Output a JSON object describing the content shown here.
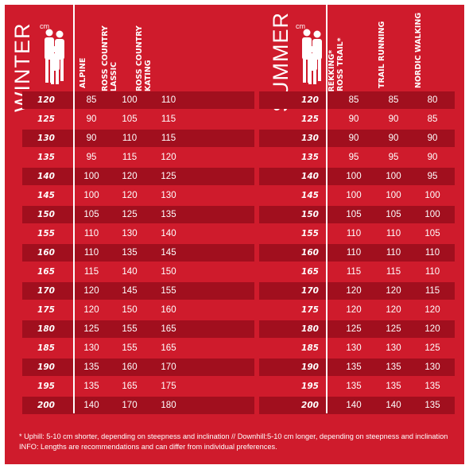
{
  "colors": {
    "background": "#cf1b2c",
    "row_dark": "#a10f1e",
    "text": "#ffffff"
  },
  "winter": {
    "title": "WINTER",
    "unit": "cm",
    "columns": [
      "ALPINE",
      "CROSS COUNTRY\nCLASSIC",
      "CROSS COUNTRY\nSKATING"
    ],
    "rows": [
      {
        "height": "120",
        "values": [
          "85",
          "100",
          "110"
        ]
      },
      {
        "height": "125",
        "values": [
          "90",
          "105",
          "115"
        ]
      },
      {
        "height": "130",
        "values": [
          "90",
          "110",
          "115"
        ]
      },
      {
        "height": "135",
        "values": [
          "95",
          "115",
          "120"
        ]
      },
      {
        "height": "140",
        "values": [
          "100",
          "120",
          "125"
        ]
      },
      {
        "height": "145",
        "values": [
          "100",
          "120",
          "130"
        ]
      },
      {
        "height": "150",
        "values": [
          "105",
          "125",
          "135"
        ]
      },
      {
        "height": "155",
        "values": [
          "110",
          "130",
          "140"
        ]
      },
      {
        "height": "160",
        "values": [
          "110",
          "135",
          "145"
        ]
      },
      {
        "height": "165",
        "values": [
          "115",
          "140",
          "150"
        ]
      },
      {
        "height": "170",
        "values": [
          "120",
          "145",
          "155"
        ]
      },
      {
        "height": "175",
        "values": [
          "120",
          "150",
          "160"
        ]
      },
      {
        "height": "180",
        "values": [
          "125",
          "155",
          "165"
        ]
      },
      {
        "height": "185",
        "values": [
          "130",
          "155",
          "165"
        ]
      },
      {
        "height": "190",
        "values": [
          "135",
          "160",
          "170"
        ]
      },
      {
        "height": "195",
        "values": [
          "135",
          "165",
          "175"
        ]
      },
      {
        "height": "200",
        "values": [
          "140",
          "170",
          "180"
        ]
      }
    ]
  },
  "summer": {
    "title": "SUMMER",
    "unit": "cm",
    "columns": [
      "TREKKING*\nCROSS TRAIL*",
      "TRAIL RUNNING",
      "NORDIC WALKING"
    ],
    "rows": [
      {
        "height": "120",
        "values": [
          "85",
          "85",
          "80"
        ]
      },
      {
        "height": "125",
        "values": [
          "90",
          "90",
          "85"
        ]
      },
      {
        "height": "130",
        "values": [
          "90",
          "90",
          "90"
        ]
      },
      {
        "height": "135",
        "values": [
          "95",
          "95",
          "90"
        ]
      },
      {
        "height": "140",
        "values": [
          "100",
          "100",
          "95"
        ]
      },
      {
        "height": "145",
        "values": [
          "100",
          "100",
          "100"
        ]
      },
      {
        "height": "150",
        "values": [
          "105",
          "105",
          "100"
        ]
      },
      {
        "height": "155",
        "values": [
          "110",
          "110",
          "105"
        ]
      },
      {
        "height": "160",
        "values": [
          "110",
          "110",
          "110"
        ]
      },
      {
        "height": "165",
        "values": [
          "115",
          "115",
          "110"
        ]
      },
      {
        "height": "170",
        "values": [
          "120",
          "120",
          "115"
        ]
      },
      {
        "height": "175",
        "values": [
          "120",
          "120",
          "120"
        ]
      },
      {
        "height": "180",
        "values": [
          "125",
          "125",
          "120"
        ]
      },
      {
        "height": "185",
        "values": [
          "130",
          "130",
          "125"
        ]
      },
      {
        "height": "190",
        "values": [
          "135",
          "135",
          "130"
        ]
      },
      {
        "height": "195",
        "values": [
          "135",
          "135",
          "135"
        ]
      },
      {
        "height": "200",
        "values": [
          "140",
          "140",
          "135"
        ]
      }
    ]
  },
  "footnote": {
    "line1": "* Uphill: 5-10 cm shorter, depending on steepness and inclination // Downhill:5-10 cm longer, depending on steepness and inclination",
    "line2": "INFO: Lengths are recommendations and can differ from individual preferences."
  }
}
